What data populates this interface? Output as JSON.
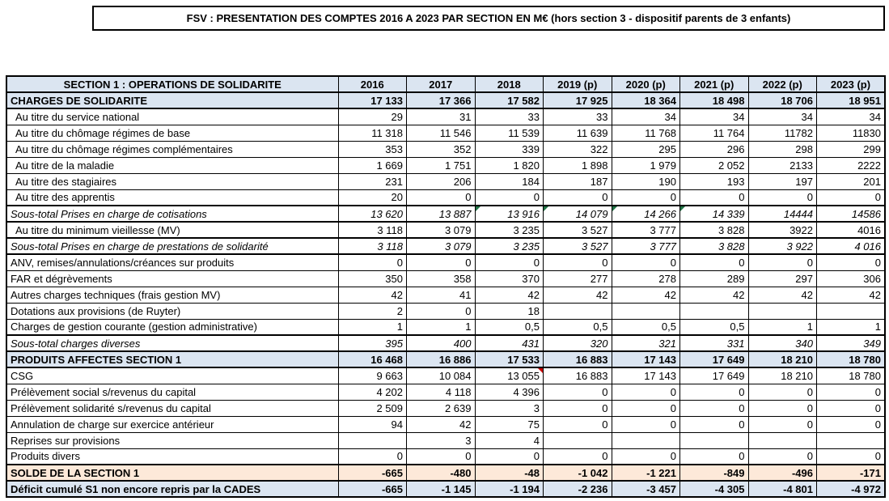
{
  "title": "FSV : PRESENTATION DES COMPTES 2016 A 2023 PAR SECTION EN M€ (hors section 3 - dispositif parents de 3  enfants)",
  "colors": {
    "header_bg": "#DBE5F1",
    "solde_bg": "#FDE9D9",
    "border": "#000000",
    "error_flag_green": "#1F7244",
    "comment_flag_red": "#CC0000"
  },
  "table": {
    "header": {
      "label": "SECTION 1 : OPERATIONS DE SOLIDARITE",
      "years": [
        "2016",
        "2017",
        "2018",
        "2019 (p)",
        "2020 (p)",
        "2021 (p)",
        "2022 (p)",
        "2023 (p)"
      ]
    },
    "rows": [
      {
        "label": "CHARGES DE SOLIDARITE",
        "style": "section",
        "values": [
          "17 133",
          "17 366",
          "17 582",
          "17 925",
          "18 364",
          "18 498",
          "18 706",
          "18 951"
        ]
      },
      {
        "label": "Au titre du service national",
        "style": "normal",
        "indent": true,
        "values": [
          "29",
          "31",
          "33",
          "33",
          "34",
          "34",
          "34",
          "34"
        ]
      },
      {
        "label": "Au titre du chômage régimes de base",
        "style": "normal",
        "indent": true,
        "values": [
          "11 318",
          "11 546",
          "11 539",
          "11 639",
          "11 768",
          "11 764",
          "11782",
          "11830"
        ]
      },
      {
        "label": "Au titre du chômage régimes complémentaires",
        "style": "normal",
        "indent": true,
        "values": [
          "353",
          "352",
          "339",
          "322",
          "295",
          "296",
          "298",
          "299"
        ]
      },
      {
        "label": "Au titre de la maladie",
        "style": "normal",
        "indent": true,
        "values": [
          "1 669",
          "1 751",
          "1 820",
          "1 898",
          "1 979",
          "2 052",
          "2133",
          "2222"
        ]
      },
      {
        "label": "Au titre des stagiaires",
        "style": "normal",
        "indent": true,
        "values": [
          "231",
          "206",
          "184",
          "187",
          "190",
          "193",
          "197",
          "201"
        ]
      },
      {
        "label": "Au titre des apprentis",
        "style": "normal",
        "indent": true,
        "values": [
          "20",
          "0",
          "0",
          "0",
          "0",
          "0",
          "0",
          "0"
        ]
      },
      {
        "label": "Sous-total Prises en charge de cotisations",
        "style": "subtotal",
        "values": [
          "13 620",
          "13 887",
          "13 916",
          "14 079",
          "14 266",
          "14 339",
          "14444",
          "14586"
        ],
        "markers": {
          "green": [
            2,
            3,
            4,
            5
          ]
        }
      },
      {
        "label": "Au titre du minimum vieillesse (MV)",
        "style": "normal",
        "indent": true,
        "values": [
          "3 118",
          "3 079",
          "3 235",
          "3 527",
          "3 777",
          "3 828",
          "3922",
          "4016"
        ]
      },
      {
        "label": "Sous-total Prises en charge de prestations de solidarité",
        "style": "subtotal",
        "values": [
          "3 118",
          "3 079",
          "3 235",
          "3 527",
          "3 777",
          "3 828",
          "3 922",
          "4 016"
        ]
      },
      {
        "label": "ANV, remises/annulations/créances sur produits",
        "style": "normal",
        "values": [
          "0",
          "0",
          "0",
          "0",
          "0",
          "0",
          "0",
          "0"
        ]
      },
      {
        "label": "FAR et dégrèvements",
        "style": "normal",
        "values": [
          "350",
          "358",
          "370",
          "277",
          "278",
          "289",
          "297",
          "306"
        ]
      },
      {
        "label": "Autres charges techniques (frais gestion MV)",
        "style": "normal",
        "values": [
          "42",
          "41",
          "42",
          "42",
          "42",
          "42",
          "42",
          "42"
        ]
      },
      {
        "label": "Dotations aux provisions (de Ruyter)",
        "style": "normal",
        "values": [
          "2",
          "0",
          "18",
          "",
          "",
          "",
          "",
          ""
        ]
      },
      {
        "label": "Charges de gestion courante (gestion administrative)",
        "style": "normal",
        "values": [
          "1",
          "1",
          "0,5",
          "0,5",
          "0,5",
          "0,5",
          "1",
          "1"
        ]
      },
      {
        "label": "Sous-total charges diverses",
        "style": "subtotal",
        "values": [
          "395",
          "400",
          "431",
          "320",
          "321",
          "331",
          "340",
          "349"
        ]
      },
      {
        "label": "PRODUITS AFFECTES SECTION 1",
        "style": "section",
        "values": [
          "16 468",
          "16 886",
          "17 533",
          "16 883",
          "17 143",
          "17 649",
          "18 210",
          "18 780"
        ]
      },
      {
        "label": "CSG",
        "style": "normal",
        "values": [
          "9 663",
          "10 084",
          "13 055",
          "16 883",
          "17 143",
          "17 649",
          "18 210",
          "18 780"
        ],
        "markers": {
          "red": [
            2
          ]
        }
      },
      {
        "label": "Prélèvement social s/revenus du capital",
        "style": "normal",
        "values": [
          "4 202",
          "4 118",
          "4 396",
          "0",
          "0",
          "0",
          "0",
          "0"
        ]
      },
      {
        "label": "Prélèvement solidarité s/revenus du capital",
        "style": "normal",
        "values": [
          "2 509",
          "2 639",
          "3",
          "0",
          "0",
          "0",
          "0",
          "0"
        ]
      },
      {
        "label": "Annulation de charge sur exercice antérieur",
        "style": "normal",
        "values": [
          "94",
          "42",
          "75",
          "0",
          "0",
          "0",
          "0",
          "0"
        ]
      },
      {
        "label": "Reprises sur provisions",
        "style": "normal",
        "values": [
          "",
          "3",
          "4",
          "",
          "",
          "",
          "",
          ""
        ]
      },
      {
        "label": "Produits divers",
        "style": "normal",
        "values": [
          "0",
          "0",
          "0",
          "0",
          "0",
          "0",
          "0",
          "0"
        ]
      },
      {
        "label": "SOLDE DE LA SECTION 1",
        "style": "solde",
        "values": [
          "-665",
          "-480",
          "-48",
          "-1 042",
          "-1 221",
          "-849",
          "-496",
          "-171"
        ]
      },
      {
        "label": "Déficit cumulé S1 non encore  repris par la CADES",
        "style": "deficit",
        "values": [
          "-665",
          "-1 145",
          "-1 194",
          "-2 236",
          "-3 457",
          "-4 305",
          "-4 801",
          "-4 972"
        ]
      }
    ]
  }
}
